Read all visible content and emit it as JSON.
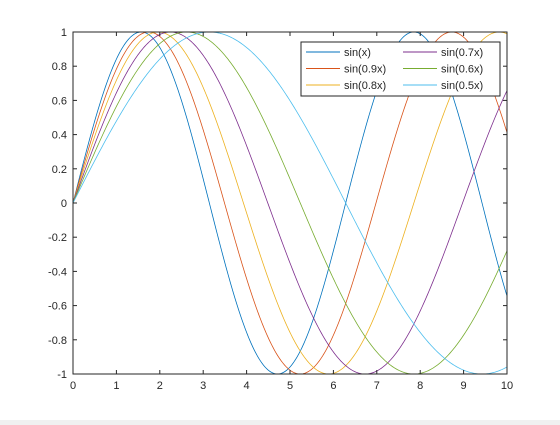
{
  "chart_data": {
    "type": "line",
    "title": "",
    "xlabel": "",
    "ylabel": "",
    "xlim": [
      0,
      10
    ],
    "ylim": [
      -1,
      1
    ],
    "xticks": [
      0,
      1,
      2,
      3,
      4,
      5,
      6,
      7,
      8,
      9,
      10
    ],
    "yticks": [
      -1,
      -0.8,
      -0.6,
      -0.4,
      -0.2,
      0,
      0.2,
      0.4,
      0.6,
      0.8,
      1
    ],
    "xtick_labels": [
      "0",
      "1",
      "2",
      "3",
      "4",
      "5",
      "6",
      "7",
      "8",
      "9",
      "10"
    ],
    "ytick_labels": [
      "-1",
      "-0.8",
      "-0.6",
      "-0.4",
      "-0.2",
      "0",
      "0.2",
      "0.4",
      "0.6",
      "0.8",
      "1"
    ],
    "grid": false,
    "legend_position": "top-right",
    "legend_columns": 2,
    "sample_x": [
      0,
      0.25,
      0.5,
      0.75,
      1,
      1.25,
      1.5,
      1.75,
      2,
      2.25,
      2.5,
      2.75,
      3,
      3.25,
      3.5,
      3.75,
      4,
      4.25,
      4.5,
      4.75,
      5,
      5.25,
      5.5,
      5.75,
      6,
      6.25,
      6.5,
      6.75,
      7,
      7.25,
      7.5,
      7.75,
      8,
      8.25,
      8.5,
      8.75,
      9,
      9.25,
      9.5,
      9.75,
      10
    ],
    "series": [
      {
        "name": "sin(x)",
        "color": "#0072bd",
        "frequency": 1.0,
        "values": [
          0,
          0.247,
          0.479,
          0.682,
          0.841,
          0.949,
          0.997,
          0.984,
          0.909,
          0.778,
          0.598,
          0.382,
          0.141,
          -0.108,
          -0.351,
          -0.572,
          -0.757,
          -0.895,
          -0.978,
          -0.999,
          -0.959,
          -0.859,
          -0.706,
          -0.508,
          -0.279,
          -0.033,
          0.215,
          0.451,
          0.657,
          0.823,
          0.938,
          0.994,
          0.989,
          0.923,
          0.798,
          0.625,
          0.412,
          0.174,
          -0.075,
          -0.319,
          -0.544
        ]
      },
      {
        "name": "sin(0.9x)",
        "color": "#d95319",
        "frequency": 0.9,
        "values": [
          0,
          0.223,
          0.435,
          0.625,
          0.783,
          0.903,
          0.976,
          0.999,
          0.974,
          0.898,
          0.778,
          0.617,
          0.427,
          0.216,
          -0.009,
          -0.234,
          -0.443,
          -0.634,
          -0.788,
          -0.907,
          -0.978,
          -0.998,
          -0.966,
          -0.889,
          -0.773,
          -0.617,
          -0.431,
          -0.224,
          -0.014,
          0.203,
          0.414,
          0.606,
          0.787,
          0.91,
          0.982,
          0.997,
          0.953,
          0.853,
          0.716,
          0.547,
          0.412
        ]
      },
      {
        "name": "sin(0.8x)",
        "color": "#edb120",
        "frequency": 0.8,
        "values": [
          0,
          0.199,
          0.389,
          0.565,
          0.717,
          0.841,
          0.932,
          0.985,
          1.0,
          0.974,
          0.909,
          0.808,
          0.675,
          0.516,
          0.335,
          0.141,
          -0.058,
          -0.256,
          -0.443,
          -0.612,
          -0.757,
          -0.872,
          -0.952,
          -0.994,
          -0.996,
          -0.959,
          -0.883,
          -0.773,
          -0.631,
          -0.464,
          -0.279,
          -0.083,
          0.117,
          0.313,
          0.494,
          0.657,
          0.793,
          0.896,
          0.968,
          0.997,
          0.989
        ]
      },
      {
        "name": "sin(0.7x)",
        "color": "#7e2f8e",
        "frequency": 0.7,
        "values": [
          0,
          0.174,
          0.343,
          0.5,
          0.644,
          0.77,
          0.867,
          0.94,
          0.985,
          1.0,
          0.984,
          0.938,
          0.863,
          0.763,
          0.638,
          0.493,
          0.335,
          0.168,
          -0.003,
          -0.174,
          -0.351,
          -0.501,
          -0.649,
          -0.773,
          -0.872,
          -0.941,
          -0.985,
          -0.999,
          -0.985,
          -0.94,
          -0.869,
          -0.77,
          -0.646,
          -0.5,
          -0.338,
          -0.165,
          0.008,
          0.182,
          0.349,
          0.505,
          0.657
        ]
      },
      {
        "name": "sin(0.6x)",
        "color": "#77ac30",
        "frequency": 0.6,
        "values": [
          0,
          0.149,
          0.296,
          0.435,
          0.565,
          0.682,
          0.783,
          0.867,
          0.932,
          0.976,
          0.997,
          0.997,
          0.974,
          0.93,
          0.863,
          0.778,
          0.675,
          0.557,
          0.427,
          0.287,
          0.141,
          -0.008,
          -0.158,
          -0.304,
          -0.443,
          -0.572,
          -0.686,
          -0.786,
          -0.872,
          -0.934,
          -0.978,
          -0.997,
          -0.996,
          -0.974,
          -0.927,
          -0.86,
          -0.772,
          -0.665,
          -0.543,
          -0.408,
          -0.279
        ]
      },
      {
        "name": "sin(0.5x)",
        "color": "#4dbeee",
        "frequency": 0.5,
        "values": [
          0,
          0.125,
          0.247,
          0.365,
          0.479,
          0.585,
          0.682,
          0.768,
          0.841,
          0.903,
          0.949,
          0.98,
          0.997,
          0.999,
          0.984,
          0.955,
          0.909,
          0.85,
          0.778,
          0.693,
          0.598,
          0.493,
          0.382,
          0.263,
          0.141,
          0.017,
          -0.108,
          -0.231,
          -0.351,
          -0.465,
          -0.572,
          -0.67,
          -0.757,
          -0.832,
          -0.895,
          -0.941,
          -0.978,
          -0.996,
          -0.999,
          -0.988,
          -0.959
        ]
      }
    ]
  }
}
